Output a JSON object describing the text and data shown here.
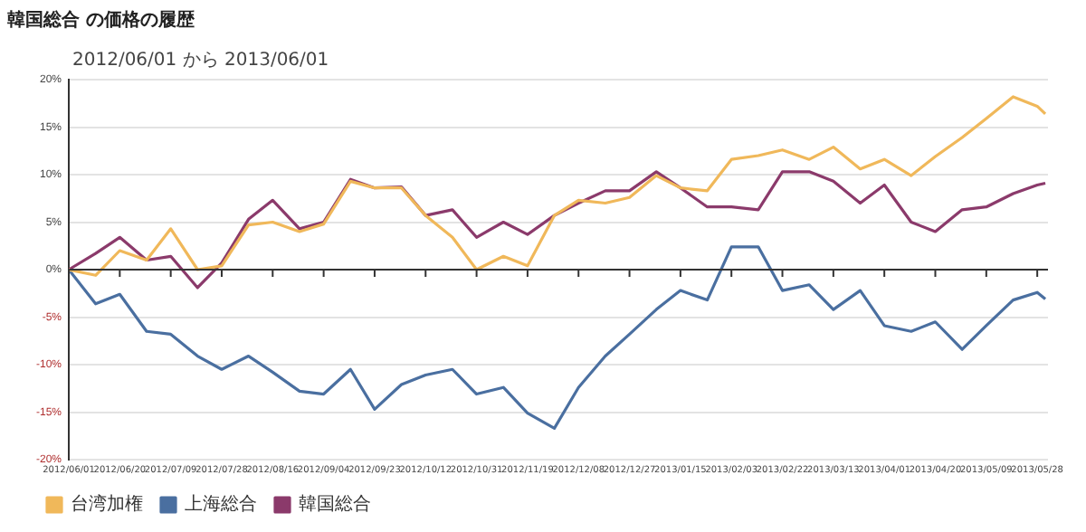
{
  "chart_data": {
    "type": "line",
    "title": "韓国総合 の価格の履歴",
    "subtitle": "2012/06/01 から 2013/06/01",
    "x": [
      "2012-06-01",
      "2012-06-11",
      "2012-06-20",
      "2012-06-30",
      "2012-07-09",
      "2012-07-19",
      "2012-07-28",
      "2012-08-07",
      "2012-08-16",
      "2012-08-26",
      "2012-09-04",
      "2012-09-14",
      "2012-09-23",
      "2012-10-03",
      "2012-10-12",
      "2012-10-22",
      "2012-10-31",
      "2012-11-10",
      "2012-11-19",
      "2012-11-29",
      "2012-12-08",
      "2012-12-18",
      "2012-12-27",
      "2013-01-06",
      "2013-01-15",
      "2013-01-25",
      "2013-02-03",
      "2013-02-13",
      "2013-02-22",
      "2013-03-04",
      "2013-03-13",
      "2013-03-23",
      "2013-04-01",
      "2013-04-11",
      "2013-04-20",
      "2013-04-30",
      "2013-05-09",
      "2013-05-19",
      "2013-05-28",
      "2013-05-31"
    ],
    "series": [
      {
        "name": "台湾加権",
        "color": "#f0b85a",
        "values": [
          0,
          -0.6,
          2,
          1,
          4.3,
          0,
          0.4,
          4.7,
          5,
          4,
          4.8,
          9.3,
          8.6,
          8.6,
          5.7,
          3.4,
          0,
          1.4,
          0.4,
          5.7,
          7.3,
          7,
          7.6,
          9.9,
          8.6,
          8.3,
          11.6,
          12,
          12.6,
          11.6,
          12.9,
          10.6,
          11.6,
          9.9,
          11.9,
          13.9,
          15.9,
          18.2,
          17.2,
          16.4
        ]
      },
      {
        "name": "上海総合",
        "color": "#4a6fa0",
        "values": [
          0,
          -3.6,
          -2.6,
          -6.5,
          -6.8,
          -9.1,
          -10.5,
          -9.1,
          -10.8,
          -12.8,
          -13.1,
          -10.5,
          -14.7,
          -12.1,
          -11.1,
          -10.5,
          -13.1,
          -12.4,
          -15.1,
          -16.7,
          -12.4,
          -9.1,
          -6.8,
          -4.2,
          -2.2,
          -3.2,
          2.4,
          2.4,
          -2.2,
          -1.6,
          -4.2,
          -2.2,
          -5.9,
          -6.5,
          -5.5,
          -8.4,
          -5.9,
          -3.2,
          -2.4,
          -3.1
        ]
      },
      {
        "name": "韓国総合",
        "color": "#8b3a6b",
        "values": [
          0,
          1.7,
          3.4,
          1,
          1.4,
          -1.9,
          0.7,
          5.3,
          7.3,
          4.3,
          5,
          9.5,
          8.6,
          8.7,
          5.7,
          6.3,
          3.4,
          5,
          3.7,
          5.7,
          7,
          8.3,
          8.3,
          10.3,
          8.6,
          6.6,
          6.6,
          6.3,
          10.3,
          10.3,
          9.3,
          7,
          8.9,
          5,
          4,
          6.3,
          6.6,
          8,
          8.9,
          9.1
        ]
      }
    ],
    "xlim": [
      "2012-06-01",
      "2013-06-01"
    ],
    "xticks": [
      {
        "value": "2012-06-01",
        "label": "2012/06/01"
      },
      {
        "value": "2012-06-20",
        "label": "2012/06/20"
      },
      {
        "value": "2012-07-09",
        "label": "2012/07/09"
      },
      {
        "value": "2012-07-28",
        "label": "2012/07/28"
      },
      {
        "value": "2012-08-16",
        "label": "2012/08/16"
      },
      {
        "value": "2012-09-04",
        "label": "2012/09/04"
      },
      {
        "value": "2012-09-23",
        "label": "2012/09/23"
      },
      {
        "value": "2012-10-12",
        "label": "2012/10/12"
      },
      {
        "value": "2012-10-31",
        "label": "2012/10/31"
      },
      {
        "value": "2012-11-19",
        "label": "2012/11/19"
      },
      {
        "value": "2012-12-08",
        "label": "2012/12/08"
      },
      {
        "value": "2012-12-27",
        "label": "2012/12/27"
      },
      {
        "value": "2013-01-15",
        "label": "2013/01/15"
      },
      {
        "value": "2013-02-03",
        "label": "2013/02/03"
      },
      {
        "value": "2013-02-22",
        "label": "2013/02/22"
      },
      {
        "value": "2013-03-13",
        "label": "2013/03/13"
      },
      {
        "value": "2013-04-01",
        "label": "2013/04/01"
      },
      {
        "value": "2013-04-20",
        "label": "2013/04/20"
      },
      {
        "value": "2013-05-09",
        "label": "2013/05/09"
      },
      {
        "value": "2013-05-28",
        "label": "2013/05/28"
      }
    ],
    "ylim": [
      -20,
      20
    ],
    "yticks": [
      {
        "value": -20,
        "label": "-20%"
      },
      {
        "value": -15,
        "label": "-15%"
      },
      {
        "value": -10,
        "label": "-10%"
      },
      {
        "value": -5,
        "label": "-5%"
      },
      {
        "value": 0,
        "label": "0%"
      },
      {
        "value": 5,
        "label": "5%"
      },
      {
        "value": 10,
        "label": "10%"
      },
      {
        "value": 15,
        "label": "15%"
      },
      {
        "value": 20,
        "label": "20%"
      }
    ],
    "grid": "y",
    "legend": "bottom left",
    "marker": "none",
    "line_style": "solid"
  }
}
